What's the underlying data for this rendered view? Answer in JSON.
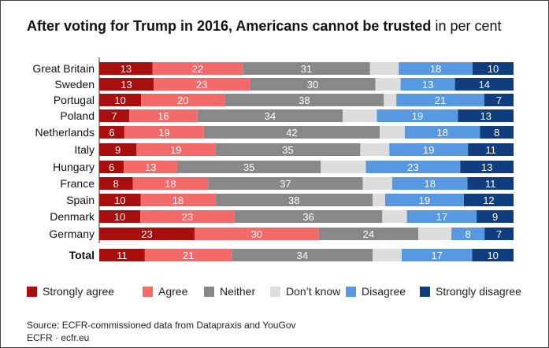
{
  "title": {
    "bold": "After voting for Trump in 2016, Americans cannot be trusted",
    "light": "in per cent"
  },
  "legend": [
    {
      "label": "Strongly agree",
      "color": "#a80e0e"
    },
    {
      "label": "Agree",
      "color": "#f46a6a"
    },
    {
      "label": "Neither",
      "color": "#888888"
    },
    {
      "label": "Don’t know",
      "color": "#dddddd"
    },
    {
      "label": "Disagree",
      "color": "#5798e0"
    },
    {
      "label": "Strongly disagree",
      "color": "#0f3d7d"
    }
  ],
  "chart_data": {
    "type": "bar",
    "orientation": "horizontal",
    "stacked": true,
    "title": "After voting for Trump in 2016, Americans cannot be trusted in per cent",
    "categories": [
      "Great Britain",
      "Sweden",
      "Portugal",
      "Poland",
      "Netherlands",
      "Italy",
      "Hungary",
      "France",
      "Spain",
      "Denmark",
      "Germany",
      "Total"
    ],
    "series": [
      {
        "name": "Strongly agree",
        "color": "#a80e0e",
        "values": [
          13,
          13,
          10,
          7,
          6,
          9,
          6,
          8,
          10,
          10,
          23,
          11
        ]
      },
      {
        "name": "Agree",
        "color": "#f46a6a",
        "values": [
          22,
          23,
          20,
          16,
          19,
          19,
          13,
          18,
          18,
          23,
          30,
          21
        ]
      },
      {
        "name": "Neither",
        "color": "#888888",
        "values": [
          31,
          30,
          38,
          34,
          42,
          35,
          35,
          37,
          38,
          36,
          24,
          34
        ]
      },
      {
        "name": "Don’t know",
        "color": "#dddddd",
        "values": [
          7,
          6,
          3,
          8,
          6,
          7,
          11,
          7,
          3,
          6,
          8,
          7
        ]
      },
      {
        "name": "Disagree",
        "color": "#5798e0",
        "values": [
          18,
          13,
          21,
          19,
          18,
          19,
          23,
          18,
          19,
          17,
          8,
          17
        ]
      },
      {
        "name": "Strongly disagree",
        "color": "#0f3d7d",
        "values": [
          10,
          14,
          7,
          13,
          8,
          11,
          13,
          11,
          12,
          9,
          7,
          10
        ]
      }
    ],
    "labeled_series": [
      "Strongly agree",
      "Agree",
      "Neither",
      "Disagree",
      "Strongly disagree"
    ],
    "bold_categories": [
      "Total"
    ],
    "xlim": [
      0,
      100
    ],
    "xlabel": "",
    "ylabel": "",
    "grid": false
  },
  "footer": {
    "source": "Source: ECFR-commissioned data from Datapraxis and YouGov",
    "credit": "ECFR · ecfr.eu"
  }
}
